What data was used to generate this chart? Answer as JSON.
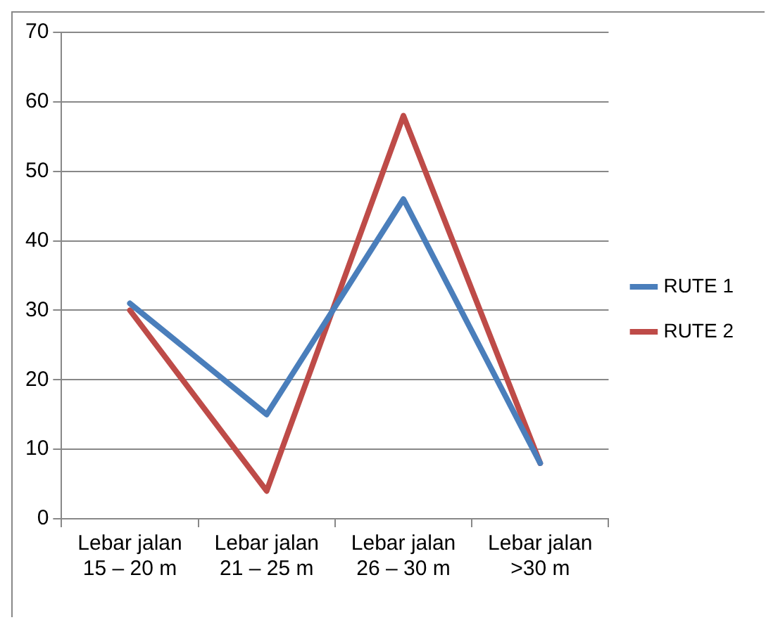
{
  "chart_data": {
    "type": "line",
    "categories": [
      "Lebar jalan 15 – 20 m",
      "Lebar jalan 21 – 25 m",
      "Lebar jalan 26 – 30 m",
      "Lebar jalan >30 m"
    ],
    "series": [
      {
        "name": "RUTE 1",
        "color": "#4a7ebb",
        "values": [
          31,
          15,
          46,
          8
        ]
      },
      {
        "name": "RUTE 2",
        "color": "#be4b48",
        "values": [
          30,
          4,
          58,
          8
        ]
      }
    ],
    "ylim": [
      0,
      70
    ],
    "yticks": [
      0,
      10,
      20,
      30,
      40,
      50,
      60,
      70
    ],
    "grid": "y",
    "legend": "right",
    "marker": "none",
    "line_style": "solid"
  }
}
